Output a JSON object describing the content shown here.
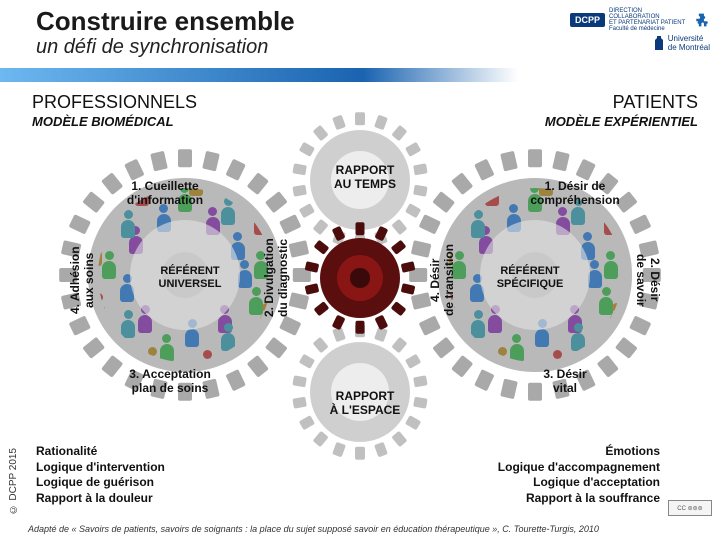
{
  "title": "Construire ensemble",
  "subtitle": "un défi de synchronisation",
  "logo": {
    "dcpp": "DCPP",
    "dcpp_sub": "DIRECTION COLLABORATION\nET PARTENARIAT PATIENT\nFaculté de médecine",
    "udm": "Université\nde Montréal"
  },
  "sections": {
    "left_title": "PROFESSIONNELS",
    "right_title": "PATIENTS",
    "left_model": "MODÈLE BIOMÉDICAL",
    "right_model": "MODÈLE EXPÉRIENTIEL"
  },
  "gears": {
    "big_teeth": 28,
    "mid_teeth": 14,
    "axis_teeth": 18,
    "colors": {
      "big_outer": "#b9b9b9",
      "big_ring": "#e2e2e2",
      "big_hub": "#c9c9c9",
      "mid_outer": "#5a0e0e",
      "mid_ring": "#8a1515",
      "mid_hub": "#3a0a0a",
      "axis_outer": "#cfcfcf",
      "axis_ring": "#ededed",
      "tooth_big": "#a9a9a9",
      "tooth_mid": "#4c0c0c",
      "tooth_axis": "#c0c0c0"
    },
    "people_colors": [
      "#2f6fb3",
      "#3a9a4a",
      "#9a7a2a",
      "#7a3a9a",
      "#3a8a9a",
      "#a33a3a"
    ]
  },
  "left_cycle": {
    "referent": "RÉFÉRENT\nUNIVERSEL",
    "s1": "1. Cueillette\nd'information",
    "s2": "2. Divulgation\ndu diagnostic",
    "s3": "3. Acceptation\nplan de soins",
    "s4": "4. Adhésion\naux soins"
  },
  "right_cycle": {
    "referent": "RÉFÉRENT\nSPÉCIFIQUE",
    "s1": "1. Désir de\ncompréhension",
    "s2": "2. Désir\nde savoir",
    "s3": "3. Désir\nvital",
    "s4": "4. Désir\nde transition"
  },
  "axes": {
    "top": "RAPPORT\nAU TEMPS",
    "bottom": "RAPPORT\nÀ L'ESPACE"
  },
  "bottom_left": [
    "Rationalité",
    "Logique d'intervention",
    "Logique de guérison",
    "Rapport à la douleur"
  ],
  "bottom_right": [
    "Émotions",
    "Logique d'accompagnement",
    "Logique d'acceptation",
    "Rapport à la souffrance"
  ],
  "copyright": "© DCPP 2015",
  "citation": "Adapté de « Savoirs de patients, savoirs de soignants : la place du sujet supposé savoir en éducation thérapeutique », C. Tourette-Turgis, 2010"
}
